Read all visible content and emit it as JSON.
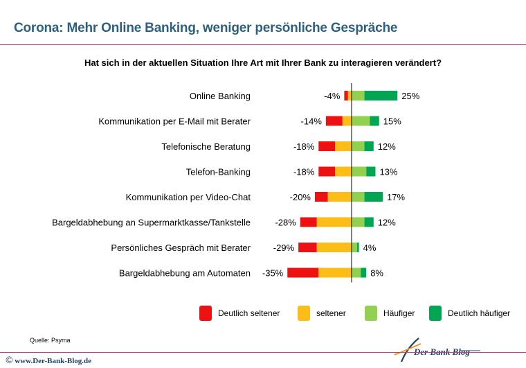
{
  "header": {
    "title": "Corona: Mehr Online Banking, weniger persönliche Gespräche",
    "question": "Hat sich in der aktuellen Situation Ihre Art mit Ihrer Bank zu interagieren verändert?"
  },
  "chart_data": {
    "type": "bar",
    "orientation": "horizontal-diverging",
    "categories": [
      "Online Banking",
      "Kommunikation per E-Mail mit Berater",
      "Telefonische Beratung",
      "Telefon-Banking",
      "Kommunikation per Video-Chat",
      "Bargeldabhebung an Supermarktkasse/Tankstelle",
      "Persönliches Gespräch mit Berater",
      "Bargeldabhebung am Automaten"
    ],
    "series": [
      {
        "name": "Deutlich seltener",
        "color": "#ee1111",
        "values": [
          -2,
          -9,
          -9,
          -9,
          -7,
          -9,
          -10,
          -17
        ]
      },
      {
        "name": "seltener",
        "color": "#fbbd16",
        "values": [
          -2,
          -5,
          -9,
          -9,
          -13,
          -19,
          -19,
          -18
        ]
      },
      {
        "name": "Häufiger",
        "color": "#92d050",
        "values": [
          7,
          10,
          7,
          8,
          7,
          7,
          3,
          5
        ]
      },
      {
        "name": "Deutlich häufiger",
        "color": "#00a651",
        "values": [
          18,
          5,
          5,
          5,
          10,
          5,
          1,
          3
        ]
      }
    ],
    "totals_negative": [
      "-4%",
      "-14%",
      "-18%",
      "-18%",
      "-20%",
      "-28%",
      "-29%",
      "-35%"
    ],
    "totals_positive": [
      "25%",
      "15%",
      "12%",
      "13%",
      "17%",
      "12%",
      "4%",
      "8%"
    ],
    "legend_position": "bottom",
    "grid": false
  },
  "legend": [
    "Deutlich seltener",
    "seltener",
    "Häufiger",
    "Deutlich häufiger"
  ],
  "source": "Quelle: Psyma",
  "footer": {
    "copyright_symbol": "©",
    "website": "www.Der-Bank-Blog.de",
    "logo_text": "Der Bank Blog"
  }
}
